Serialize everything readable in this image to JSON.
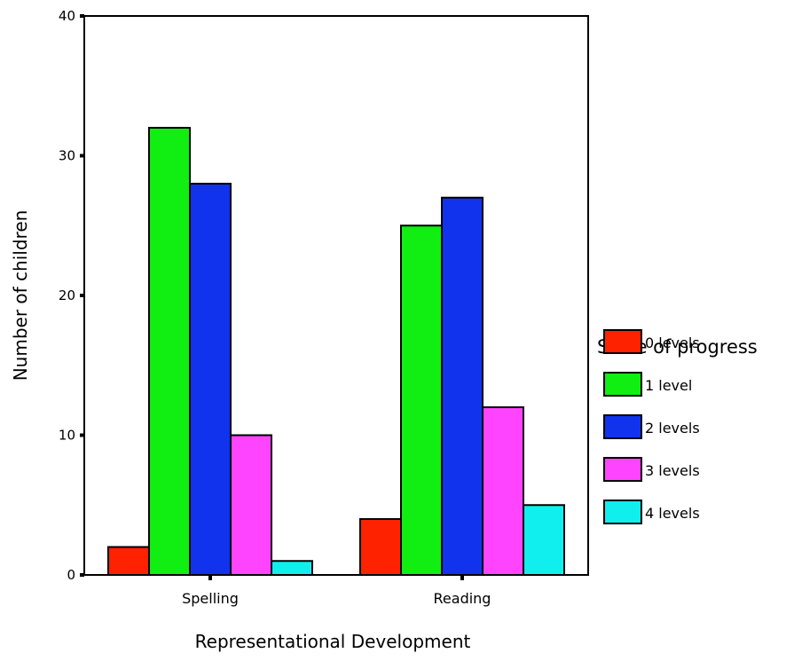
{
  "chart_data": {
    "type": "bar",
    "xlabel": "Representational Development",
    "ylabel": "Number of children",
    "ylim": [
      0,
      40
    ],
    "yticks": [
      0,
      10,
      20,
      30,
      40
    ],
    "categories": [
      "Spelling",
      "Reading"
    ],
    "legend_title": "Scale of progress",
    "legend_position": "right",
    "grid": false,
    "series": [
      {
        "name": "0 levels",
        "color": "#ff2200",
        "values": [
          2,
          4
        ]
      },
      {
        "name": "1 level",
        "color": "#11ee11",
        "values": [
          32,
          25
        ]
      },
      {
        "name": "2 levels",
        "color": "#1133ee",
        "values": [
          28,
          27
        ]
      },
      {
        "name": "3 levels",
        "color": "#ff44ff",
        "values": [
          10,
          12
        ]
      },
      {
        "name": "4 levels",
        "color": "#11eeee",
        "values": [
          1,
          5
        ]
      }
    ]
  }
}
